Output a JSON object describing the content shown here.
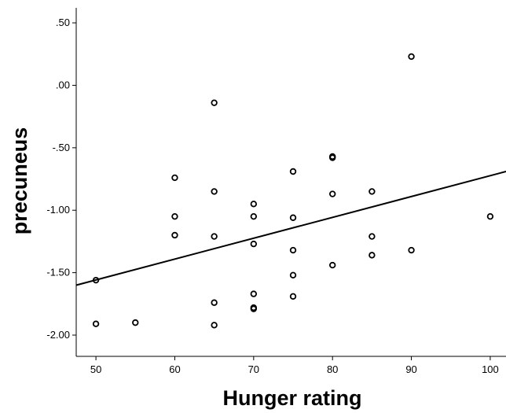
{
  "chart_data": {
    "type": "scatter",
    "title": "",
    "xlabel": "Hunger rating",
    "ylabel": "precuneus",
    "xlim": [
      47.5,
      102
    ],
    "ylim": [
      -2.17,
      0.62
    ],
    "x_ticks": [
      50,
      60,
      70,
      80,
      90,
      100
    ],
    "x_tick_labels": [
      "50",
      "60",
      "70",
      "80",
      "90",
      "100"
    ],
    "y_ticks": [
      0.5,
      0.0,
      -0.5,
      -1.0,
      -1.5,
      -2.0
    ],
    "y_tick_labels": [
      ".50",
      ".00",
      "-.50",
      "-1.00",
      "-1.50",
      "-2.00"
    ],
    "grid": false,
    "legend": "none",
    "marker": "open-circle",
    "marker_color": "#000000",
    "points": [
      {
        "x": 50,
        "y": -1.56
      },
      {
        "x": 50,
        "y": -1.91
      },
      {
        "x": 55,
        "y": -1.9
      },
      {
        "x": 60,
        "y": -0.74
      },
      {
        "x": 60,
        "y": -1.05
      },
      {
        "x": 60,
        "y": -1.2
      },
      {
        "x": 65,
        "y": -0.14
      },
      {
        "x": 65,
        "y": -0.85
      },
      {
        "x": 65,
        "y": -1.21
      },
      {
        "x": 65,
        "y": -1.74
      },
      {
        "x": 65,
        "y": -1.92
      },
      {
        "x": 70,
        "y": -0.95
      },
      {
        "x": 70,
        "y": -1.05
      },
      {
        "x": 70,
        "y": -1.27
      },
      {
        "x": 70,
        "y": -1.67
      },
      {
        "x": 70,
        "y": -1.78
      },
      {
        "x": 70,
        "y": -1.79
      },
      {
        "x": 75,
        "y": -0.69
      },
      {
        "x": 75,
        "y": -1.06
      },
      {
        "x": 75,
        "y": -1.32
      },
      {
        "x": 75,
        "y": -1.52
      },
      {
        "x": 75,
        "y": -1.69
      },
      {
        "x": 80,
        "y": -0.57
      },
      {
        "x": 80,
        "y": -0.58
      },
      {
        "x": 80,
        "y": -0.87
      },
      {
        "x": 80,
        "y": -1.44
      },
      {
        "x": 85,
        "y": -0.85
      },
      {
        "x": 85,
        "y": -1.21
      },
      {
        "x": 85,
        "y": -1.36
      },
      {
        "x": 90,
        "y": 0.23
      },
      {
        "x": 90,
        "y": -1.32
      },
      {
        "x": 100,
        "y": -1.05
      }
    ],
    "fit_line": {
      "x": [
        47.5,
        102
      ],
      "y": [
        -1.6,
        -0.69
      ]
    }
  }
}
